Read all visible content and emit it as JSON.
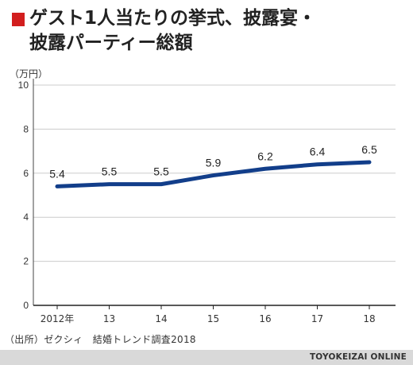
{
  "header": {
    "title_line1": "ゲスト1人当たりの挙式、披露宴・",
    "title_line2": "披露パーティー総額"
  },
  "chart_data": {
    "type": "line",
    "title": "ゲスト1人当たりの挙式、披露宴・披露パーティー総額",
    "unit_label": "（万円）",
    "categories": [
      "2012年",
      "13",
      "14",
      "15",
      "16",
      "17",
      "18"
    ],
    "series": [
      {
        "values": [
          5.4,
          5.5,
          5.5,
          5.9,
          6.2,
          6.4,
          6.5
        ]
      }
    ],
    "data_labels": [
      "5.4",
      "5.5",
      "5.5",
      "5.9",
      "6.2",
      "6.4",
      "6.5"
    ],
    "ylim": [
      0,
      10
    ],
    "yticks": [
      0,
      2,
      4,
      6,
      8,
      10
    ],
    "grid": true,
    "line_color": "#123e8a",
    "grid_color": "#cccccc"
  },
  "source": "（出所）ゼクシィ　結婚トレンド調査2018",
  "brand": "TOYOKEIZAI ONLINE"
}
